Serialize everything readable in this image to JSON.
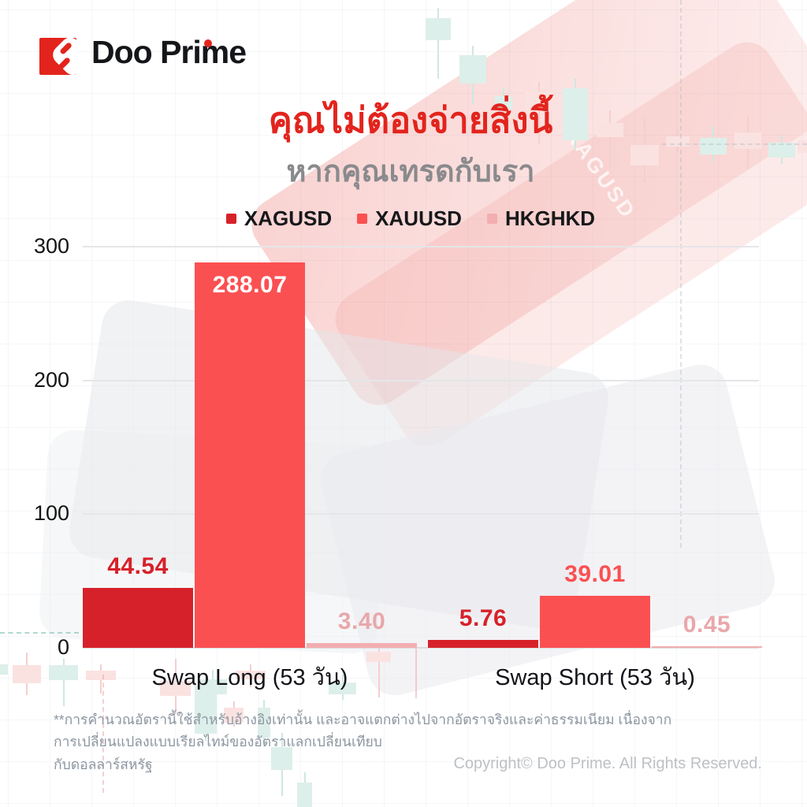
{
  "brand": {
    "name": "Doo Prime"
  },
  "header": {
    "title_line1": "คุณไม่ต้องจ่ายสิ่งนี้",
    "title_line2": "หากคุณเทรดกับเรา"
  },
  "chart_data": {
    "type": "bar",
    "title": "คุณไม่ต้องจ่ายสิ่งนี้ หากคุณเทรดกับเรา",
    "categories": [
      "Swap Long (53 วัน)",
      "Swap Short (53 วัน)"
    ],
    "series": [
      {
        "name": "XAGUSD",
        "color": "#D7212A",
        "label_color": "#D7212A",
        "values": [
          44.54,
          5.76
        ],
        "labels": [
          "44.54",
          "5.76"
        ]
      },
      {
        "name": "XAUUSD",
        "color": "#FB5052",
        "label_color": "#FB5052",
        "values": [
          288.07,
          39.01
        ],
        "labels": [
          "288.07",
          "39.01"
        ]
      },
      {
        "name": "HKGHKD",
        "color": "#F2AEB1",
        "label_color": "#E9A7AA",
        "values": [
          3.4,
          0.45
        ],
        "labels": [
          "3.40",
          "0.45"
        ]
      }
    ],
    "ylim": [
      0,
      300
    ],
    "y_ticks": [
      "300",
      "200",
      "100",
      "0"
    ],
    "grid": true,
    "legend_position": "top",
    "inside_label_color": "#FFFFFF"
  },
  "watermark": {
    "text": "XAGUSD"
  },
  "footer": {
    "disclaimer_line1": "**การคำนวณอัตรานี้ใช้สำหรับอ้างอิงเท่านั้น และอาจแตกต่างไปจากอัตราจริงและค่าธรรมเนียม เนื่องจากการเปลี่ยนแปลงแบบเรียลไทม์ของอัตราแลกเปลี่ยนเทียบ",
    "disclaimer_line2": "กับดอลลาร์สหรัฐ",
    "copyright": "Copyright© Doo Prime. All Rights Reserved."
  }
}
